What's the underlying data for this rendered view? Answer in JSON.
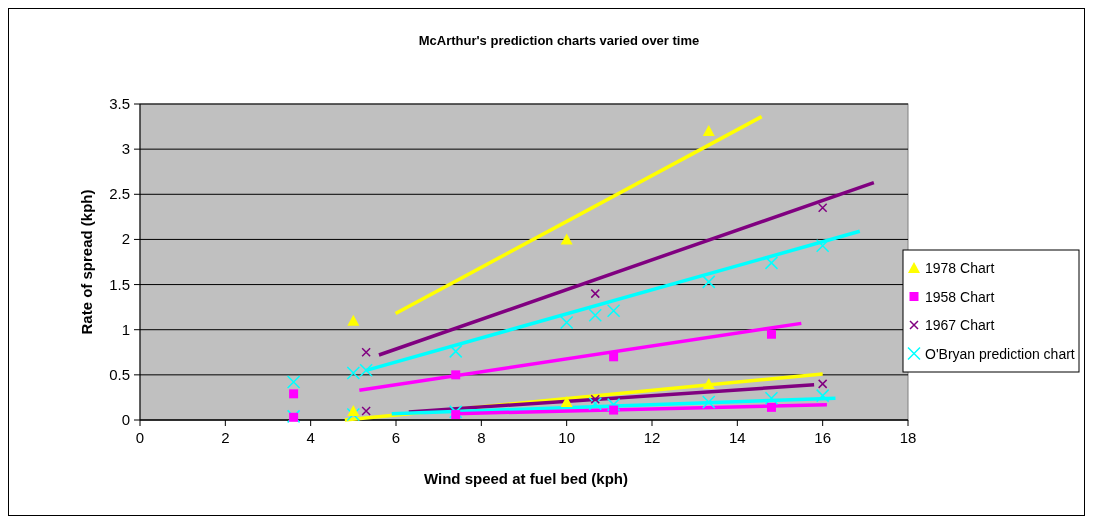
{
  "chart_data": {
    "type": "scatter",
    "title": "McArthur's prediction charts varied over time",
    "xlabel": "Wind speed at fuel bed (kph)",
    "ylabel": "Rate of spread (kph)",
    "xlim": [
      0,
      18
    ],
    "xticks": [
      0,
      2,
      4,
      6,
      8,
      10,
      12,
      14,
      16,
      18
    ],
    "ylim": [
      0,
      3.5
    ],
    "yticks": [
      0,
      0.5,
      1,
      1.5,
      2,
      2.5,
      3,
      3.5
    ],
    "grid": "y",
    "legend": "right",
    "series": [
      {
        "name": "1978 Chart",
        "color": "#ffff00",
        "marker": "triangle",
        "x": [
          5,
          10,
          13.33,
          5,
          10,
          13.33
        ],
        "values": [
          1.1,
          2.0,
          3.2,
          0.1,
          0.2,
          0.4
        ]
      },
      {
        "name": "1958 Chart",
        "color": "#ff00ff",
        "marker": "square",
        "x": [
          3.6,
          3.6,
          7.4,
          11.1,
          14.8,
          7.4,
          11.1,
          14.8
        ],
        "values": [
          0.29,
          0.03,
          0.5,
          0.7,
          0.95,
          0.06,
          0.11,
          0.14
        ]
      },
      {
        "name": "1967 Chart",
        "color": "#800080",
        "marker": "cross",
        "x": [
          5.3,
          5.3,
          10.67,
          16,
          10.67,
          16
        ],
        "values": [
          0.75,
          0.1,
          1.4,
          2.35,
          0.23,
          0.4
        ]
      },
      {
        "name": "O'Bryan prediction chart",
        "color": "#00ffff",
        "marker": "cross",
        "x": [
          3.6,
          3.6,
          5,
          5.3,
          7.4,
          10,
          10.67,
          11.1,
          13.33,
          14.8,
          16,
          5,
          7.4,
          10.67,
          11.1,
          13.33,
          14.8,
          16
        ],
        "values": [
          0.42,
          0.04,
          0.52,
          0.55,
          0.76,
          1.08,
          1.16,
          1.21,
          1.53,
          1.74,
          1.93,
          0.06,
          0.09,
          0.18,
          0.17,
          0.2,
          0.24,
          0.27
        ]
      },
      {
        "type": "line",
        "color": "#ffff00",
        "x": [
          5.99,
          14.57
        ],
        "values": [
          1.18,
          3.36
        ]
      },
      {
        "type": "line",
        "color": "#ffff00",
        "x": [
          4.8,
          16
        ],
        "values": [
          0,
          0.51
        ]
      },
      {
        "type": "line",
        "color": "#800080",
        "x": [
          5.6,
          17.2
        ],
        "values": [
          0.72,
          2.63
        ]
      },
      {
        "type": "line",
        "color": "#800080",
        "x": [
          6.3,
          15.8
        ],
        "values": [
          0.09,
          0.39
        ]
      },
      {
        "type": "line",
        "color": "#00ffff",
        "x": [
          5.3,
          16.87
        ],
        "values": [
          0.55,
          2.09
        ]
      },
      {
        "type": "line",
        "color": "#00ffff",
        "x": [
          5.9,
          16.3
        ],
        "values": [
          0.07,
          0.24
        ]
      },
      {
        "type": "line",
        "color": "#ff00ff",
        "x": [
          5.14,
          15.5
        ],
        "values": [
          0.33,
          1.07
        ]
      },
      {
        "type": "line",
        "color": "#ff00ff",
        "x": [
          7.4,
          16.1
        ],
        "values": [
          0.07,
          0.17
        ]
      }
    ]
  }
}
